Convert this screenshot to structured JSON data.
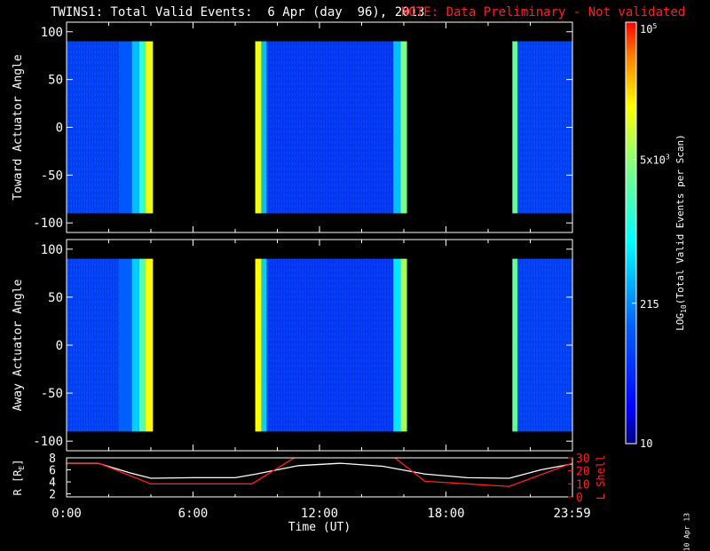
{
  "header": {
    "title": "TWINS1: Total Valid Events:  6 Apr (day  96), 2013",
    "note": "NOTE: Data Preliminary - Not validated",
    "note_color": "#ff2020"
  },
  "footer": {
    "datestamp": "10 Apr 13"
  },
  "chart_data": [
    {
      "type": "heatmap",
      "ylabel": "Toward Actuator Angle",
      "ylim": [
        -110,
        110
      ],
      "yticks": [
        100,
        50,
        0,
        -50,
        -100
      ],
      "xlim": [
        0,
        24
      ],
      "colorscale": "rainbow-log",
      "bands": [
        {
          "start": 0.0,
          "end": 2.45,
          "level": 0.22
        },
        {
          "start": 2.45,
          "end": 3.1,
          "level": 0.26
        },
        {
          "start": 3.1,
          "end": 3.45,
          "level": 0.4
        },
        {
          "start": 3.45,
          "end": 3.75,
          "level": 0.55
        },
        {
          "start": 3.75,
          "end": 4.1,
          "level": 0.78
        },
        {
          "start": 8.95,
          "end": 9.25,
          "level": 0.78
        },
        {
          "start": 9.25,
          "end": 9.5,
          "level": 0.4
        },
        {
          "start": 9.5,
          "end": 15.5,
          "level": 0.2
        },
        {
          "start": 15.5,
          "end": 15.85,
          "level": 0.4
        },
        {
          "start": 15.85,
          "end": 16.15,
          "level": 0.65
        },
        {
          "start": 21.15,
          "end": 21.4,
          "level": 0.62
        },
        {
          "start": 21.4,
          "end": 24.0,
          "level": 0.22
        }
      ]
    },
    {
      "type": "heatmap",
      "ylabel": "Away Actuator Angle",
      "ylim": [
        -110,
        110
      ],
      "yticks": [
        100,
        50,
        0,
        -50,
        -100
      ],
      "xlim": [
        0,
        24
      ],
      "colorscale": "rainbow-log",
      "bands": [
        {
          "start": 0.0,
          "end": 2.45,
          "level": 0.22
        },
        {
          "start": 2.45,
          "end": 3.1,
          "level": 0.28
        },
        {
          "start": 3.1,
          "end": 3.45,
          "level": 0.42
        },
        {
          "start": 3.45,
          "end": 3.75,
          "level": 0.6
        },
        {
          "start": 3.75,
          "end": 4.1,
          "level": 0.8
        },
        {
          "start": 8.95,
          "end": 9.25,
          "level": 0.8
        },
        {
          "start": 9.25,
          "end": 9.5,
          "level": 0.42
        },
        {
          "start": 9.5,
          "end": 15.5,
          "level": 0.2
        },
        {
          "start": 15.5,
          "end": 15.85,
          "level": 0.45
        },
        {
          "start": 15.85,
          "end": 16.15,
          "level": 0.7
        },
        {
          "start": 21.15,
          "end": 21.4,
          "level": 0.62
        },
        {
          "start": 21.4,
          "end": 24.0,
          "level": 0.22
        }
      ]
    },
    {
      "type": "line",
      "ylabel_left": "R [R",
      "ylabel_left_sub": "E",
      "ylabel_left_close": "]",
      "ylabel_right": "L Shell",
      "ylim_left": [
        1.5,
        8
      ],
      "yticks_left": [
        8,
        6,
        4,
        2
      ],
      "ylim_right": [
        0,
        30
      ],
      "yticks_right": [
        30,
        20,
        10,
        0
      ],
      "xlabel": "Time (UT)",
      "xticks": [
        {
          "value": 0,
          "label": "0:00"
        },
        {
          "value": 6,
          "label": "6:00"
        },
        {
          "value": 12,
          "label": "12:00"
        },
        {
          "value": 18,
          "label": "18:00"
        },
        {
          "value": 23.983,
          "label": "23:59"
        }
      ],
      "series": [
        {
          "axis": "left",
          "color": "#ffffff",
          "x": [
            0,
            1.5,
            3,
            4,
            6,
            8,
            9,
            11,
            13,
            15,
            17,
            19,
            21,
            22.5,
            24
          ],
          "y": [
            7.1,
            7.1,
            5.5,
            4.6,
            4.7,
            4.7,
            5.3,
            6.7,
            7.1,
            6.6,
            5.3,
            4.7,
            4.6,
            6.0,
            7.0
          ]
        },
        {
          "axis": "right",
          "color": "#ff2020",
          "x": [
            0,
            1.5,
            4,
            8.8,
            11,
            11.5,
            15,
            15.5,
            17,
            21,
            24
          ],
          "y": [
            26,
            26,
            10,
            10,
            32,
            32,
            32,
            31,
            12,
            8,
            26
          ]
        }
      ]
    },
    {
      "type": "colorbar",
      "label_main": "LOG",
      "label_sub": "10",
      "label_rest": "(Total Valid Events per Scan)",
      "scale": "log",
      "range": [
        10,
        100000
      ],
      "ticks": [
        {
          "value": 10,
          "label": "10"
        },
        {
          "value": 215,
          "label": "215"
        },
        {
          "value": 5000,
          "label": "5x10",
          "sup": "3"
        },
        {
          "value": 100000,
          "label": "10",
          "sup": "5"
        }
      ]
    }
  ]
}
